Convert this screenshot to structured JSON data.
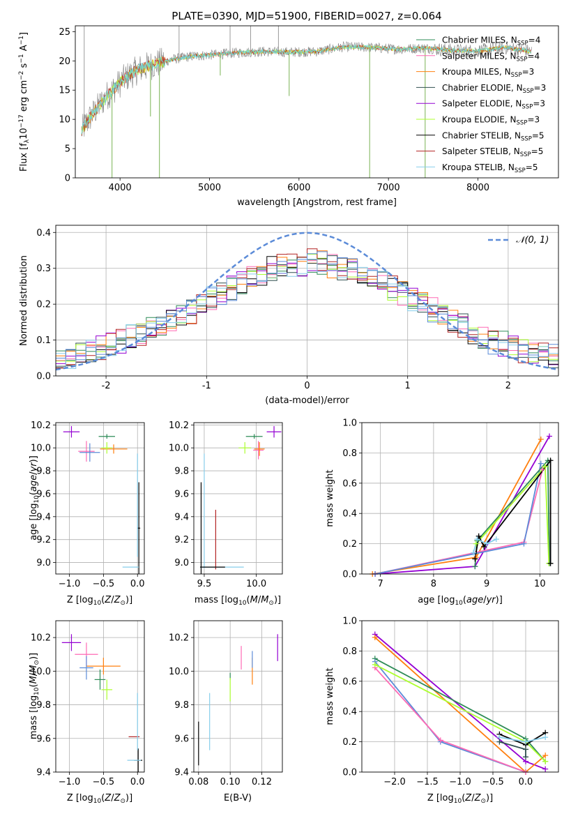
{
  "figure_title": "PLATE=0390, MJD=51900, FIBERID=0027, z=0.064",
  "colors": {
    "s0": "#2e8b57",
    "s1": "#ff69b4",
    "s2": "#ff7f0e",
    "s3": "#2f4f4f",
    "s4": "#9400d3",
    "s5": "#adff2f",
    "s6": "#000000",
    "s7": "#b22222",
    "s8": "#87ceeb",
    "gauss": "#5b8bd8",
    "grid": "#b0b0b0",
    "data": "#808080",
    "fit": "#6fd7d7"
  },
  "chart_data": [
    {
      "id": "spectrum",
      "type": "line",
      "xlabel": "wavelength [Angstrom, rest frame]",
      "ylabel_parts": {
        "main": "Flux [f",
        "sub": "λ",
        "mid": "10",
        "sup1": "−17",
        "tail": " erg cm",
        "sup2": "−2",
        "tail2": " s",
        "sup3": "−1",
        "tail3": " A",
        "sup4": "−1",
        "end": "]"
      },
      "xlim": [
        3500,
        8900
      ],
      "ylim": [
        0,
        26
      ],
      "xticks": [
        4000,
        5000,
        6000,
        7000,
        8000
      ],
      "yticks": [
        0,
        5,
        10,
        15,
        20,
        25
      ],
      "grid": false,
      "legend_position": "right",
      "legend": [
        {
          "base": "Chabrier MILES, N",
          "sub": "SSP",
          "tail": "=4"
        },
        {
          "base": "Salpeter MILES, N",
          "sub": "SSP",
          "tail": "=4"
        },
        {
          "base": "Kroupa MILES, N",
          "sub": "SSP",
          "tail": "=3"
        },
        {
          "base": "Chabrier ELODIE, N",
          "sub": "SSP",
          "tail": "=3"
        },
        {
          "base": "Salpeter ELODIE, N",
          "sub": "SSP",
          "tail": "=3"
        },
        {
          "base": "Kroupa ELODIE, N",
          "sub": "SSP",
          "tail": "=3"
        },
        {
          "base": "Chabrier STELIB, N",
          "sub": "SSP",
          "tail": "=5"
        },
        {
          "base": "Salpeter STELIB, N",
          "sub": "SSP",
          "tail": "=5"
        },
        {
          "base": "Kroupa STELIB, N",
          "sub": "SSP",
          "tail": "=5"
        }
      ],
      "continuum": {
        "x": [
          3570,
          3650,
          3750,
          3850,
          3950,
          4050,
          4200,
          4400,
          4600,
          4800,
          5000,
          5300,
          5600,
          5900,
          6200,
          6500,
          6800,
          7100,
          7400,
          7700,
          8000,
          8300,
          8600
        ],
        "y": [
          8,
          10,
          12,
          14,
          15.5,
          17,
          18.5,
          19.5,
          20.3,
          20.8,
          21.0,
          21.4,
          21.6,
          21.5,
          21.6,
          22.4,
          22.3,
          22.0,
          22.2,
          21.8,
          21.7,
          22.3,
          21.6
        ]
      },
      "spikes_down": [
        {
          "x": 3910,
          "y": 0
        },
        {
          "x": 4340,
          "y": 10.5
        },
        {
          "x": 4440,
          "y": 0
        },
        {
          "x": 5120,
          "y": 17.5
        },
        {
          "x": 5890,
          "y": 14
        },
        {
          "x": 6790,
          "y": 0
        },
        {
          "x": 7410,
          "y": 0
        }
      ],
      "spikes_up": [
        {
          "x": 3600,
          "y": 26
        },
        {
          "x": 4660,
          "y": 26
        },
        {
          "x": 5230,
          "y": 26
        },
        {
          "x": 5770,
          "y": 26
        },
        {
          "x": 5460,
          "y": 26
        }
      ]
    },
    {
      "id": "residuals",
      "type": "step",
      "xlabel": "(data-model)/error",
      "ylabel": "Normed distribution",
      "xlim": [
        -2.5,
        2.5
      ],
      "ylim": [
        0,
        0.42
      ],
      "xticks": [
        -2,
        -1,
        0,
        1,
        2
      ],
      "yticks": [
        0.0,
        0.1,
        0.2,
        0.3,
        0.4
      ],
      "grid": true,
      "legend_position": "top-right",
      "legend": [
        {
          "label": "𝒩(0, 1)"
        }
      ],
      "bins": {
        "start": -2.5,
        "width": 0.1,
        "count": 50
      },
      "mean_profile": [
        0.04,
        0.055,
        0.06,
        0.07,
        0.08,
        0.09,
        0.095,
        0.11,
        0.12,
        0.135,
        0.14,
        0.155,
        0.17,
        0.18,
        0.2,
        0.215,
        0.23,
        0.245,
        0.26,
        0.27,
        0.28,
        0.3,
        0.305,
        0.31,
        0.31,
        0.32,
        0.315,
        0.305,
        0.3,
        0.295,
        0.28,
        0.27,
        0.26,
        0.245,
        0.23,
        0.215,
        0.2,
        0.185,
        0.17,
        0.155,
        0.14,
        0.12,
        0.11,
        0.095,
        0.09,
        0.08,
        0.07,
        0.065,
        0.06,
        0.055
      ],
      "gaussian": {
        "mu": 0,
        "sigma": 1
      }
    },
    {
      "id": "age_vs_Z",
      "type": "errorbar",
      "xlabel": "Z [log10(Z/Z⊙)]",
      "ylabel": "age [log10(age/yr)]",
      "xlim": [
        -1.2,
        0.1
      ],
      "ylim": [
        8.9,
        10.22
      ],
      "xticks": [
        -1.0,
        -0.5,
        0.0
      ],
      "xticklabels": [
        "−1.0",
        "−0.5",
        "0.0"
      ],
      "yticks": [
        9.0,
        9.2,
        9.4,
        9.6,
        9.8,
        10.0,
        10.2
      ],
      "yticklabels": [
        "9.0",
        "9.2",
        "9.4",
        "9.6",
        "9.8",
        "10.0",
        "10.2"
      ],
      "grid": true,
      "points": [
        {
          "c": "s0",
          "x": -0.45,
          "xerr": 0.12,
          "y": 10.1,
          "yerr": 0.02
        },
        {
          "c": "s1",
          "x": -0.75,
          "xerr": 0.12,
          "y": 9.97,
          "yerr": 0.09
        },
        {
          "c": "s2",
          "x": -0.35,
          "xerr": 0.2,
          "y": 9.99,
          "yerr": 0.04
        },
        {
          "c": "s4",
          "x": -0.97,
          "xerr": 0.12,
          "y": 10.14,
          "yerr": 0.05
        },
        {
          "c": "s5",
          "x": -0.45,
          "xerr": 0.08,
          "y": 10.0,
          "yerr": 0.05
        },
        {
          "c": "gauss",
          "x": -0.7,
          "xerr": 0.15,
          "y": 9.96,
          "yerr": 0.08
        },
        {
          "c": "s6",
          "x": 0.02,
          "xerr": 0.02,
          "y": 9.3,
          "yerr": 0.4
        },
        {
          "c": "s8",
          "x": -0.1,
          "xerr": 0.12,
          "y": 8.96,
          "yerr": 0.0
        },
        {
          "c": "s8",
          "x": 0.0,
          "xerr": 0.0,
          "y": 9.5,
          "yerr": 0.45
        }
      ]
    },
    {
      "id": "age_vs_mass",
      "type": "errorbar",
      "xlabel": "mass [log10(M/M⊙)]",
      "ylabel": "",
      "xlim": [
        9.4,
        10.25
      ],
      "ylim": [
        8.9,
        10.22
      ],
      "xticks": [
        9.5,
        10.0
      ],
      "xticklabels": [
        "9.5",
        "10.0"
      ],
      "yticks": [
        9.0,
        9.2,
        9.4,
        9.6,
        9.8,
        10.0,
        10.2
      ],
      "yticklabels": [
        "9.0",
        "9.2",
        "9.4",
        "9.6",
        "9.8",
        "10.0",
        "10.2"
      ],
      "grid": true,
      "points": [
        {
          "c": "s0",
          "x": 9.98,
          "xerr": 0.08,
          "y": 10.1,
          "yerr": 0.02
        },
        {
          "c": "s4",
          "x": 10.17,
          "xerr": 0.07,
          "y": 10.14,
          "yerr": 0.05
        },
        {
          "c": "s5",
          "x": 9.89,
          "xerr": 0.06,
          "y": 10.0,
          "yerr": 0.05
        },
        {
          "c": "s1",
          "x": 10.02,
          "xerr": 0.05,
          "y": 9.98,
          "yerr": 0.08
        },
        {
          "c": "s2",
          "x": 10.03,
          "xerr": 0.05,
          "y": 9.99,
          "yerr": 0.06
        },
        {
          "c": "s6",
          "x": 9.47,
          "xerr": 0.0,
          "y": 9.3,
          "yerr": 0.4
        },
        {
          "c": "s8",
          "x": 9.5,
          "xerr": 0.0,
          "y": 9.45,
          "yerr": 0.5
        },
        {
          "c": "s7",
          "x": 9.61,
          "xerr": 0.0,
          "y": 9.2,
          "yerr": 0.26
        },
        {
          "c": "s8",
          "x": 9.67,
          "xerr": 0.21,
          "y": 8.96,
          "yerr": 0.0
        },
        {
          "c": "s6",
          "x": 9.58,
          "xerr": 0.12,
          "y": 8.96,
          "yerr": 0.0
        }
      ]
    },
    {
      "id": "massweight_vs_age",
      "type": "line",
      "xlabel": "age [log10(age/yr)]",
      "ylabel": "mass weight",
      "xlim": [
        6.65,
        10.35
      ],
      "ylim": [
        0,
        1.0
      ],
      "xticks": [
        7,
        8,
        9,
        10
      ],
      "xticklabels": [
        "7",
        "8",
        "9",
        "10"
      ],
      "yticks": [
        0.0,
        0.2,
        0.4,
        0.6,
        0.8,
        1.0
      ],
      "yticklabels": [
        "0.0",
        "0.2",
        "0.4",
        "0.6",
        "0.8",
        "1.0"
      ],
      "grid": true,
      "series": [
        {
          "c": "s2",
          "x": [
            6.85,
            8.8,
            10.02
          ],
          "y": [
            0.0,
            0.11,
            0.89
          ]
        },
        {
          "c": "s4",
          "x": [
            6.9,
            8.78,
            10.18
          ],
          "y": [
            0.0,
            0.05,
            0.91
          ]
        },
        {
          "c": "s1",
          "x": [
            6.9,
            9.7,
            10.05
          ],
          "y": [
            0.0,
            0.21,
            0.69
          ]
        },
        {
          "c": "gauss",
          "x": [
            6.9,
            9.7,
            10.02
          ],
          "y": [
            0.0,
            0.2,
            0.73
          ]
        },
        {
          "c": "s0",
          "x": [
            8.78,
            8.82,
            10.15,
            10.18
          ],
          "y": [
            0.05,
            0.22,
            0.75,
            0.07
          ]
        },
        {
          "c": "s5",
          "x": [
            8.8,
            10.1,
            10.17
          ],
          "y": [
            0.2,
            0.71,
            0.07
          ]
        },
        {
          "c": "s6",
          "x": [
            8.78,
            8.85,
            8.95,
            10.2,
            10.2
          ],
          "y": [
            0.1,
            0.25,
            0.18,
            0.75,
            0.07
          ]
        },
        {
          "c": "s8",
          "x": [
            8.75,
            8.82,
            9.0,
            9.18
          ],
          "y": [
            0.14,
            0.23,
            0.2,
            0.23
          ]
        }
      ]
    },
    {
      "id": "mass_vs_Z",
      "type": "errorbar",
      "xlabel": "Z [log10(Z/Z⊙)]",
      "ylabel": "mass [log10(M/M⊙)]",
      "xlim": [
        -1.2,
        0.1
      ],
      "ylim": [
        9.4,
        10.3
      ],
      "xticks": [
        -1.0,
        -0.5,
        0.0
      ],
      "xticklabels": [
        "−1.0",
        "−0.5",
        "0.0"
      ],
      "yticks": [
        9.4,
        9.6,
        9.8,
        10.0,
        10.2
      ],
      "yticklabels": [
        "9.4",
        "9.6",
        "9.8",
        "10.0",
        "10.2"
      ],
      "grid": true,
      "points": [
        {
          "c": "s4",
          "x": -0.97,
          "xerr": 0.14,
          "y": 10.17,
          "yerr": 0.05
        },
        {
          "c": "s1",
          "x": -0.75,
          "xerr": 0.17,
          "y": 10.1,
          "yerr": 0.07
        },
        {
          "c": "s2",
          "x": -0.5,
          "xerr": 0.25,
          "y": 10.03,
          "yerr": 0.05
        },
        {
          "c": "gauss",
          "x": -0.75,
          "xerr": 0.1,
          "y": 10.02,
          "yerr": 0.07
        },
        {
          "c": "s0",
          "x": -0.55,
          "xerr": 0.08,
          "y": 9.95,
          "yerr": 0.06
        },
        {
          "c": "s5",
          "x": -0.45,
          "xerr": 0.08,
          "y": 9.89,
          "yerr": 0.06
        },
        {
          "c": "s7",
          "x": -0.05,
          "xerr": 0.08,
          "y": 9.61,
          "yerr": 0.0
        },
        {
          "c": "s6",
          "x": 0.01,
          "xerr": 0.06,
          "y": 9.47,
          "yerr": 0.07
        },
        {
          "c": "s8",
          "x": -0.05,
          "xerr": 0.1,
          "y": 9.47,
          "yerr": 0.0
        },
        {
          "c": "s8",
          "x": 0.0,
          "xerr": 0.0,
          "y": 9.7,
          "yerr": 0.17
        }
      ]
    },
    {
      "id": "mass_vs_EBV",
      "type": "errorbar",
      "xlabel": "E(B-V)",
      "ylabel": "",
      "xlim": [
        0.077,
        0.133
      ],
      "ylim": [
        9.4,
        10.3
      ],
      "xticks": [
        0.08,
        0.1,
        0.12
      ],
      "xticklabels": [
        "0.08",
        "0.10",
        "0.12"
      ],
      "yticks": [
        9.4,
        9.6,
        9.8,
        10.0,
        10.2
      ],
      "yticklabels": [
        "9.4",
        "9.6",
        "9.8",
        "10.0",
        "10.2"
      ],
      "grid": true,
      "points": [
        {
          "c": "s6",
          "x": 0.08,
          "xerr": 0.0,
          "y": 9.57,
          "yerr": 0.13
        },
        {
          "c": "s8",
          "x": 0.087,
          "xerr": 0.0,
          "y": 9.7,
          "yerr": 0.17
        },
        {
          "c": "s0",
          "x": 0.1,
          "xerr": 0.0,
          "y": 9.97,
          "yerr": 0.02
        },
        {
          "c": "s5",
          "x": 0.1,
          "xerr": 0.0,
          "y": 9.89,
          "yerr": 0.07
        },
        {
          "c": "s1",
          "x": 0.107,
          "xerr": 0.0,
          "y": 10.08,
          "yerr": 0.07
        },
        {
          "c": "s2",
          "x": 0.114,
          "xerr": 0.0,
          "y": 10.0,
          "yerr": 0.08
        },
        {
          "c": "gauss",
          "x": 0.114,
          "xerr": 0.0,
          "y": 10.07,
          "yerr": 0.05
        },
        {
          "c": "s4",
          "x": 0.13,
          "xerr": 0.0,
          "y": 10.14,
          "yerr": 0.08
        }
      ]
    },
    {
      "id": "massweight_vs_Z",
      "type": "line",
      "xlabel": "Z [log10(Z/Z⊙)]",
      "ylabel": "mass weight",
      "xlim": [
        -2.5,
        0.5
      ],
      "ylim": [
        0,
        1.0
      ],
      "xticks": [
        -2.0,
        -1.5,
        -1.0,
        -0.5,
        0.0
      ],
      "xticklabels": [
        "−2.0",
        "−1.5",
        "−1.0",
        "−0.5",
        "0.0"
      ],
      "yticks": [
        0.0,
        0.2,
        0.4,
        0.6,
        0.8,
        1.0
      ],
      "yticklabels": [
        "0.0",
        "0.2",
        "0.4",
        "0.6",
        "0.8",
        "1.0"
      ],
      "grid": true,
      "series": [
        {
          "c": "s4",
          "x": [
            -2.3,
            0.0,
            0.3
          ],
          "y": [
            0.91,
            0.07,
            0.02
          ]
        },
        {
          "c": "s2",
          "x": [
            -2.3,
            0.0,
            0.3
          ],
          "y": [
            0.89,
            0.0,
            0.11
          ]
        },
        {
          "c": "s0",
          "x": [
            -2.3,
            0.0,
            0.3
          ],
          "y": [
            0.75,
            0.22,
            0.07
          ]
        },
        {
          "c": "gauss",
          "x": [
            -2.3,
            -1.3,
            0.0
          ],
          "y": [
            0.73,
            0.2,
            0.0
          ]
        },
        {
          "c": "s1",
          "x": [
            -2.3,
            -1.3,
            0.0
          ],
          "y": [
            0.69,
            0.21,
            0.0
          ]
        },
        {
          "c": "s5",
          "x": [
            -2.3,
            0.0,
            0.3
          ],
          "y": [
            0.71,
            0.2,
            0.07
          ]
        },
        {
          "c": "s6",
          "x": [
            -0.4,
            0.0,
            0.3
          ],
          "y": [
            0.25,
            0.18,
            0.26
          ]
        },
        {
          "c": "s8",
          "x": [
            -0.4,
            0.0,
            0.3
          ],
          "y": [
            0.23,
            0.2,
            0.23
          ]
        },
        {
          "c": "s3",
          "x": [
            -0.4,
            0.0,
            0.0
          ],
          "y": [
            0.2,
            0.15,
            0.1
          ]
        }
      ]
    }
  ]
}
